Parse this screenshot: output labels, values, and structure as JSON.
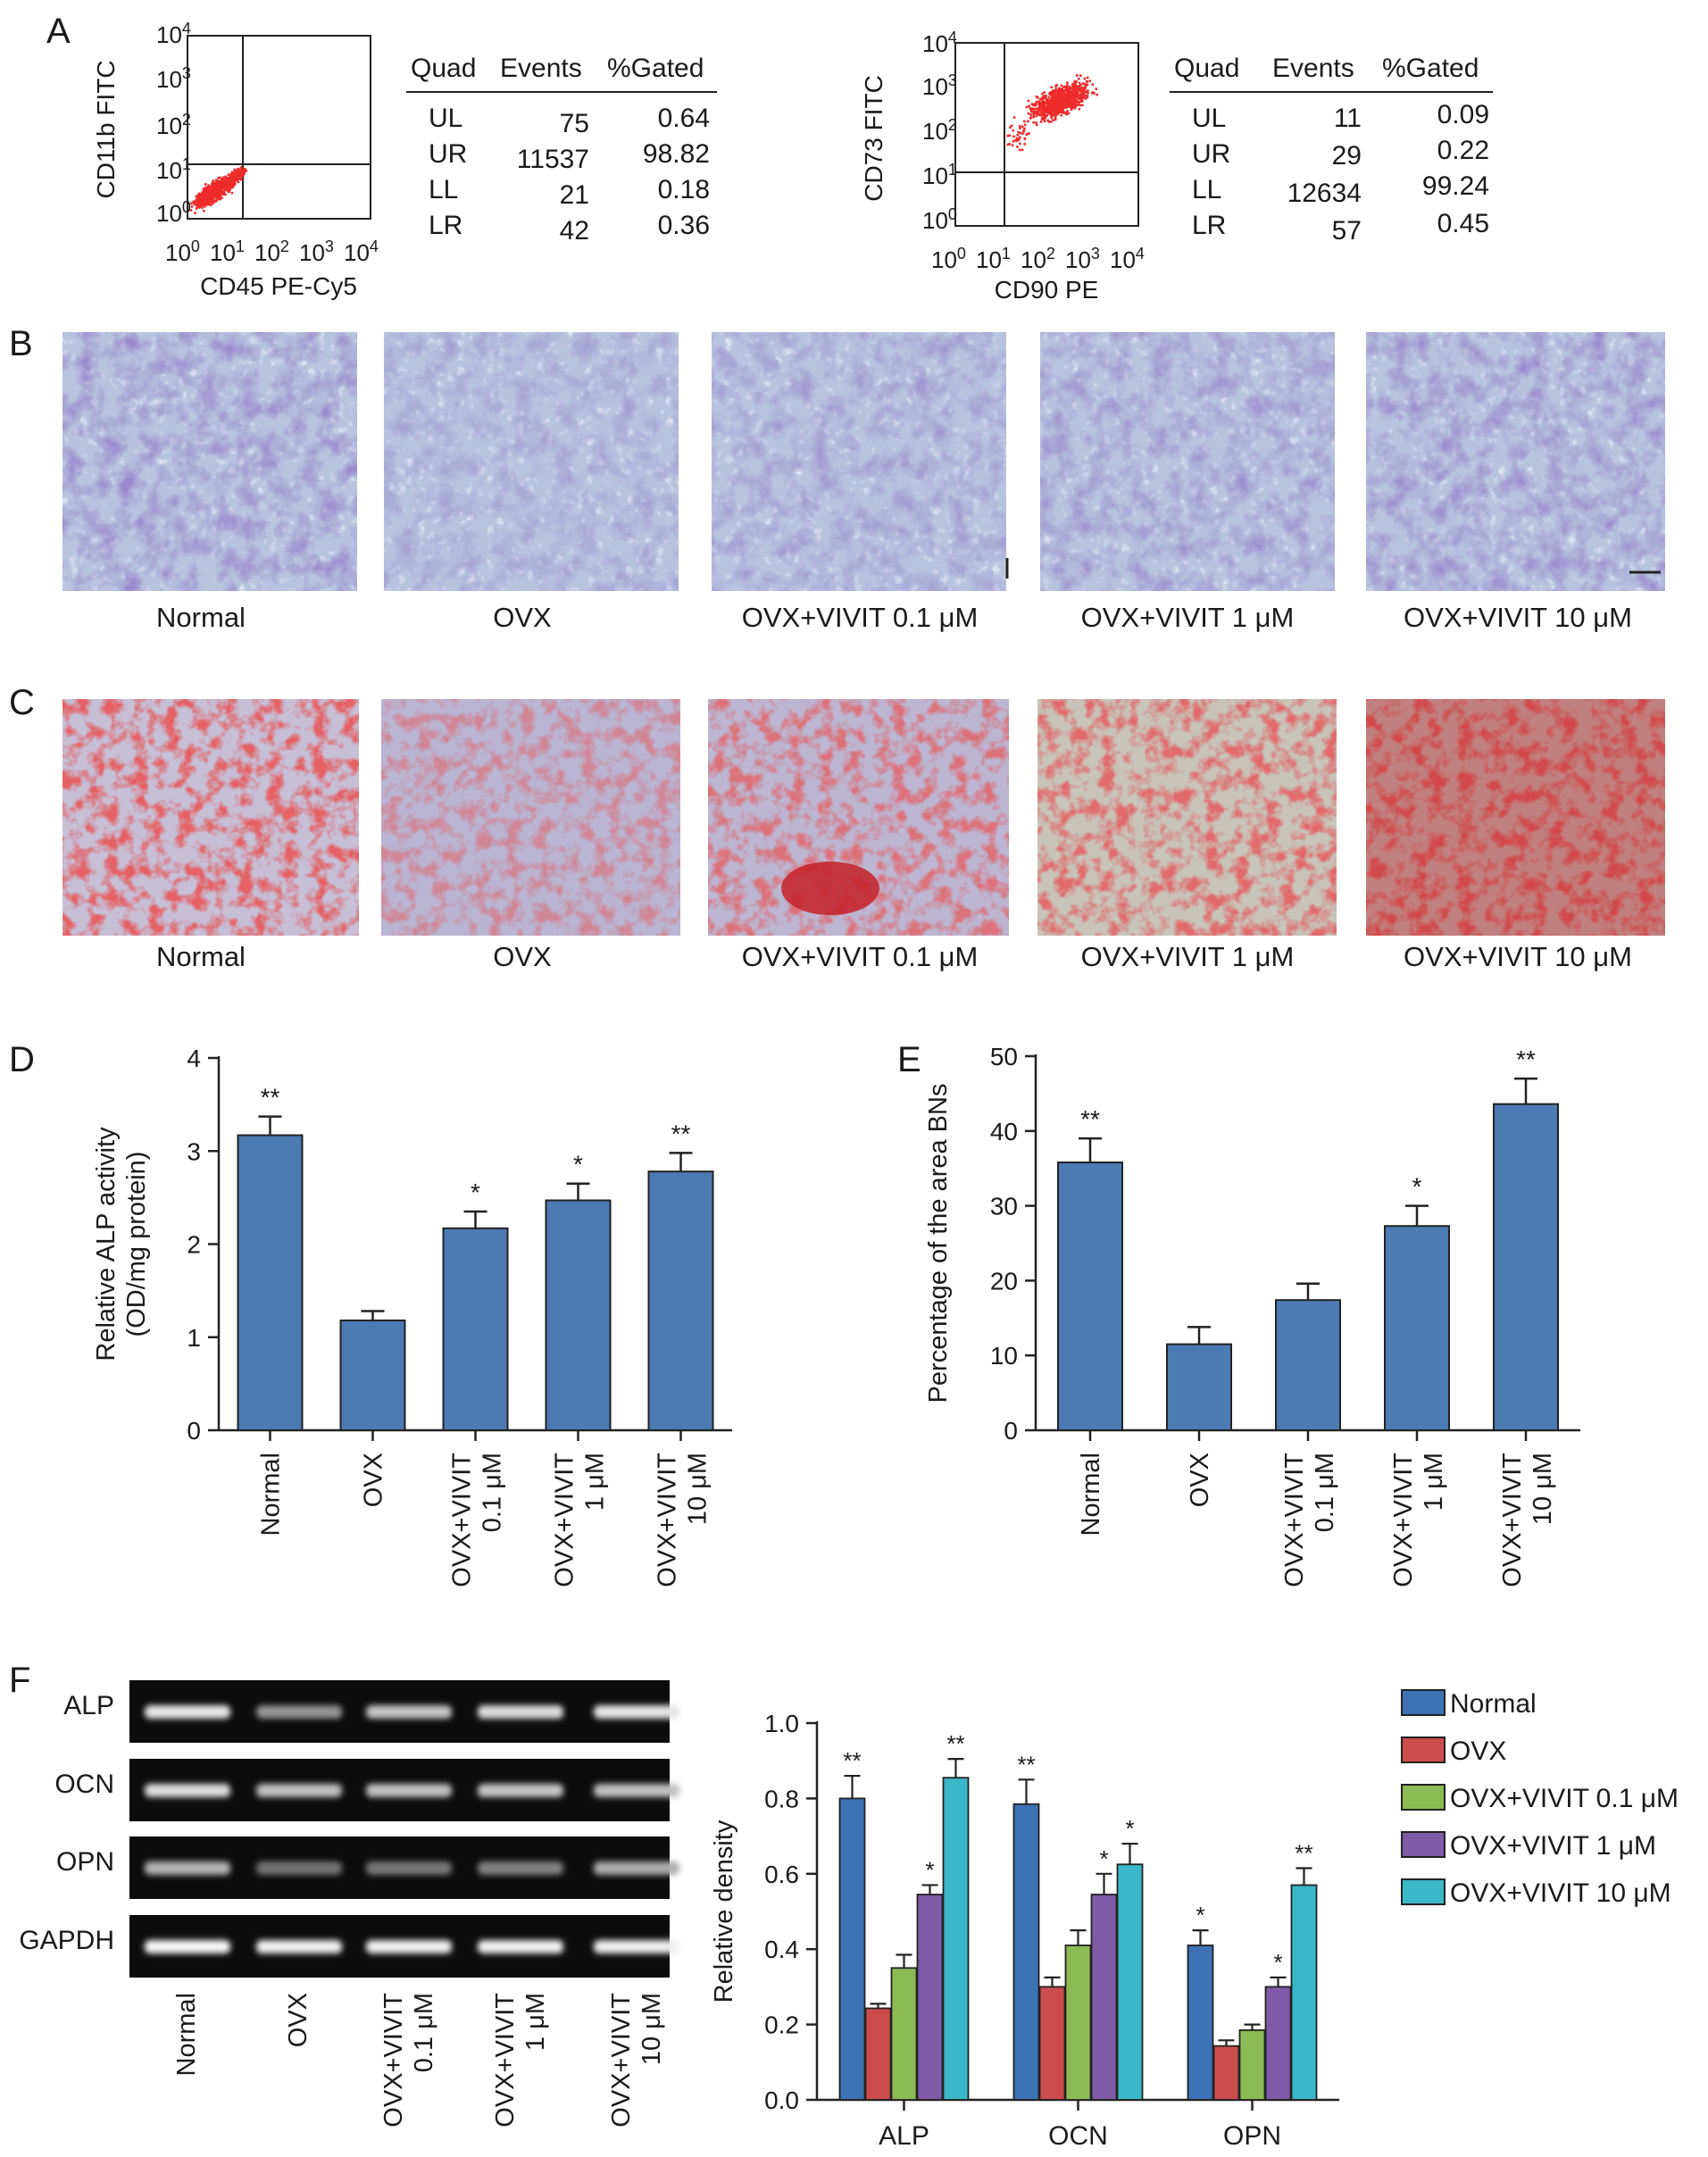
{
  "panel_letters": [
    "A",
    "B",
    "C",
    "D",
    "E",
    "F"
  ],
  "flow": [
    {
      "xlabel": "CD45 PE-Cy5",
      "ylabel": "CD11b FITC",
      "table_headers": [
        "Quad",
        "Events",
        "%Gated"
      ],
      "rows": [
        {
          "quad": "UL",
          "events": "75",
          "gated": "0.64"
        },
        {
          "quad": "UR",
          "events": "11537",
          "gated": "98.82"
        },
        {
          "quad": "LL",
          "events": "21",
          "gated": "0.18"
        },
        {
          "quad": "LR",
          "events": "42",
          "gated": "0.36"
        }
      ]
    },
    {
      "xlabel": "CD90 PE",
      "ylabel": "CD73 FITC",
      "table_headers": [
        "Quad",
        "Events",
        "%Gated"
      ],
      "rows": [
        {
          "quad": "UL",
          "events": "11",
          "gated": "0.09"
        },
        {
          "quad": "UR",
          "events": "29",
          "gated": "0.22"
        },
        {
          "quad": "LL",
          "events": "12634",
          "gated": "99.24"
        },
        {
          "quad": "LR",
          "events": "57",
          "gated": "0.45"
        }
      ]
    }
  ],
  "micro_labels": [
    "Normal",
    "OVX",
    "OVX+VIVIT 0.1 μM",
    "OVX+VIVIT 1 μM",
    "OVX+VIVIT 10 μM"
  ],
  "gel": {
    "genes": [
      "ALP",
      "OCN",
      "OPN",
      "GAPDH"
    ],
    "lanes": [
      "Normal",
      "OVX",
      "OVX+VIVIT\n0.1 μM",
      "OVX+VIVIT\n1 μM",
      "OVX+VIVIT\n10 μM"
    ],
    "band_intensity": [
      [
        0.85,
        0.35,
        0.65,
        0.8,
        0.85
      ],
      [
        0.8,
        0.62,
        0.62,
        0.65,
        0.62
      ],
      [
        0.55,
        0.15,
        0.18,
        0.25,
        0.5
      ],
      [
        0.95,
        0.9,
        0.9,
        0.9,
        0.9
      ]
    ]
  },
  "colors": {
    "bar_blue": "#4c7ab3",
    "flow_dots": "#ee2b2b",
    "legend": [
      "#3d73b5",
      "#cc4b4b",
      "#8cbb55",
      "#7f5aa6",
      "#3ab7c8"
    ],
    "stain_b": "#8d96c6",
    "stain_c": "#c22828"
  },
  "chart_data": [
    {
      "panel": "D",
      "type": "bar",
      "ylabel": "Relative ALP activity\n(OD/mg protein)",
      "categories": [
        "Normal",
        "OVX",
        "OVX+VIVIT\n0.1 μM",
        "OVX+VIVIT\n1 μM",
        "OVX+VIVIT\n10 μM"
      ],
      "values": [
        3.17,
        1.18,
        2.17,
        2.47,
        2.78
      ],
      "errors": [
        0.2,
        0.1,
        0.18,
        0.18,
        0.2
      ],
      "sig": [
        "**",
        "",
        "*",
        "*",
        "**"
      ],
      "ylim": [
        0,
        4
      ],
      "yticks": [
        0,
        1,
        2,
        3,
        4
      ]
    },
    {
      "panel": "E",
      "type": "bar",
      "ylabel": "Percentage of the area BNs",
      "categories": [
        "Normal",
        "OVX",
        "OVX+VIVIT\n0.1 μM",
        "OVX+VIVIT\n1 μM",
        "OVX+VIVIT\n10 μM"
      ],
      "values": [
        35.8,
        11.5,
        17.4,
        27.3,
        43.6
      ],
      "errors": [
        3.2,
        2.3,
        2.2,
        2.7,
        3.4
      ],
      "sig": [
        "**",
        "",
        "",
        "*",
        "**"
      ],
      "ylim": [
        0,
        50
      ],
      "yticks": [
        0,
        10,
        20,
        30,
        40,
        50
      ]
    },
    {
      "panel": "F",
      "type": "bar",
      "ylabel": "Relative density",
      "categories": [
        "ALP",
        "OCN",
        "OPN"
      ],
      "series": [
        {
          "name": "Normal",
          "values": [
            0.8,
            0.785,
            0.41
          ],
          "errors": [
            0.06,
            0.065,
            0.04
          ],
          "sig": [
            "**",
            "**",
            "*"
          ]
        },
        {
          "name": "OVX",
          "values": [
            0.243,
            0.3,
            0.143
          ],
          "errors": [
            0.012,
            0.025,
            0.015
          ],
          "sig": [
            "",
            "",
            ""
          ]
        },
        {
          "name": "OVX+VIVIT 0.1 μM",
          "values": [
            0.35,
            0.41,
            0.185
          ],
          "errors": [
            0.035,
            0.04,
            0.015
          ],
          "sig": [
            "",
            "",
            ""
          ]
        },
        {
          "name": "OVX+VIVIT 1 μM",
          "values": [
            0.545,
            0.545,
            0.3
          ],
          "errors": [
            0.025,
            0.055,
            0.025
          ],
          "sig": [
            "*",
            "*",
            "*"
          ]
        },
        {
          "name": "OVX+VIVIT 10 μM",
          "values": [
            0.855,
            0.625,
            0.57
          ],
          "errors": [
            0.05,
            0.055,
            0.045
          ],
          "sig": [
            "**",
            "*",
            "**"
          ]
        }
      ],
      "ylim": [
        0,
        1.0
      ],
      "yticks": [
        0.0,
        0.2,
        0.4,
        0.6,
        0.8,
        1.0
      ],
      "ytick_labels": [
        "0.0",
        "0.2",
        "0.4",
        "0.6",
        "0.8",
        "1.0"
      ]
    }
  ]
}
